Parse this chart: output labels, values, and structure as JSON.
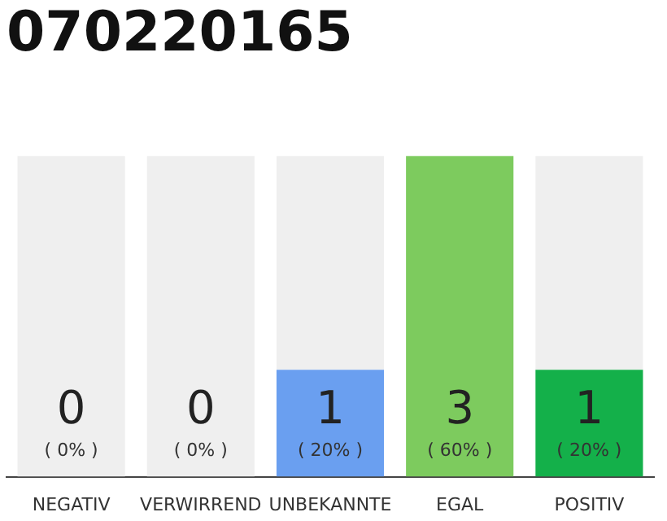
{
  "chart_data": {
    "type": "bar",
    "title": "070220165",
    "stacked": true,
    "categories": [
      "NEGATIV",
      "VERWIRREND",
      "UNBEKANNTE",
      "EGAL",
      "POSITIV"
    ],
    "series": [
      {
        "colors": [
          "#8a8a8a",
          "#8a8a8a",
          "#6a9ff0",
          "#7dcb5e",
          "#14b04a"
        ],
        "values": [
          0,
          0,
          1,
          3,
          1
        ],
        "value_labels": [
          null,
          null,
          "1",
          "3",
          "1"
        ]
      },
      {
        "color": "#efefef",
        "values": [
          3,
          3,
          2,
          0,
          2
        ]
      }
    ],
    "ylim": [
      0,
      3
    ],
    "legend": false,
    "annotations": [
      "( 0% )",
      "( 0% )",
      "( 20% )",
      "( 60% )",
      "( 20% )",
      "0",
      "0"
    ]
  }
}
